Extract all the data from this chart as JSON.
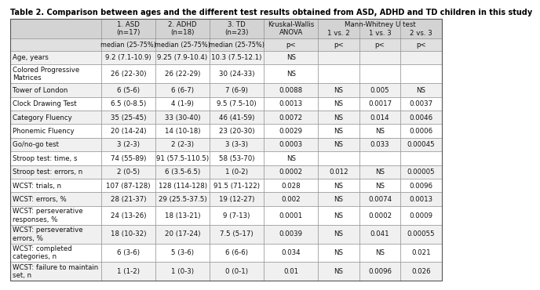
{
  "title": "Table 2. Comparison between ages and the different test results obtained from ASD, ADHD and TD children in this study",
  "rows": [
    [
      "Age, years",
      "9.2 (7.1-10.9)",
      "9.25 (7.9-10.4)",
      "10.3 (7.5-12.1)",
      "NS",
      "",
      "",
      ""
    ],
    [
      "Colored Progressive\nMatrices",
      "26 (22-30)",
      "26 (22-29)",
      "30 (24-33)",
      "NS",
      "",
      "",
      ""
    ],
    [
      "Tower of London",
      "6 (5-6)",
      "6 (6-7)",
      "7 (6-9)",
      "0.0088",
      "NS",
      "0.005",
      "NS"
    ],
    [
      "Clock Drawing Test",
      "6.5 (0-8.5)",
      "4 (1-9)",
      "9.5 (7.5-10)",
      "0.0013",
      "NS",
      "0.0017",
      "0.0037"
    ],
    [
      "Category Fluency",
      "35 (25-45)",
      "33 (30-40)",
      "46 (41-59)",
      "0.0072",
      "NS",
      "0.014",
      "0.0046"
    ],
    [
      "Phonemic Fluency",
      "20 (14-24)",
      "14 (10-18)",
      "23 (20-30)",
      "0.0029",
      "NS",
      "NS",
      "0.0006"
    ],
    [
      "Go/no-go test",
      "3 (2-3)",
      "2 (2-3)",
      "3 (3-3)",
      "0.0003",
      "NS",
      "0.033",
      "0.00045"
    ],
    [
      "Stroop test: time, s",
      "74 (55-89)",
      "91 (57.5-110.5)",
      "58 (53-70)",
      "NS",
      "",
      "",
      ""
    ],
    [
      "Stroop test: errors, n",
      "2 (0-5)",
      "6 (3.5-6.5)",
      "1 (0-2)",
      "0.0002",
      "0.012",
      "NS",
      "0.00005"
    ],
    [
      "WCST: trials, n",
      "107 (87-128)",
      "128 (114-128)",
      "91.5 (71-122)",
      "0.028",
      "NS",
      "NS",
      "0.0096"
    ],
    [
      "WCST: errors, %",
      "28 (21-37)",
      "29 (25.5-37.5)",
      "19 (12-27)",
      "0.002",
      "NS",
      "0.0074",
      "0.0013"
    ],
    [
      "WCST: perseverative\nresponses, %",
      "24 (13-26)",
      "18 (13-21)",
      "9 (7-13)",
      "0.0001",
      "NS",
      "0.0002",
      "0.0009"
    ],
    [
      "WCST: perseverative\nerrors, %",
      "18 (10-32)",
      "20 (17-24)",
      "7.5 (5-17)",
      "0.0039",
      "NS",
      "0.041",
      "0.00055"
    ],
    [
      "WCST: completed\ncategories, n",
      "6 (3-6)",
      "5 (3-6)",
      "6 (6-6)",
      "0.034",
      "NS",
      "NS",
      "0.021"
    ],
    [
      "WCST: failure to maintain\nset, n",
      "1 (1-2)",
      "1 (0-3)",
      "0 (0-1)",
      "0.01",
      "NS",
      "0.0096",
      "0.026"
    ]
  ],
  "bg_header1": "#d3d3d3",
  "bg_header2": "#e0e0e0",
  "bg_row_even": "#f0f0f0",
  "bg_row_odd": "#ffffff",
  "font_size": 6.2,
  "title_font_size": 7.0
}
